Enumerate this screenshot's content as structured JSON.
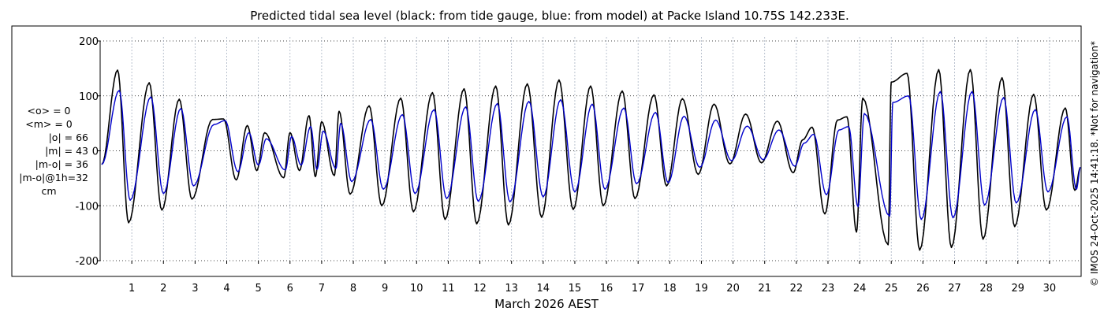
{
  "chart_data": {
    "type": "line",
    "title": "Predicted tidal sea level (black: from tide gauge, blue: from model) at Packe Island 10.75S 142.233E.",
    "xlabel": "March 2026 AEST",
    "ylabel": "",
    "unit": "cm",
    "xlim": [
      0,
      31
    ],
    "ylim": [
      -200,
      200
    ],
    "yticks": [
      -200,
      -100,
      0,
      100,
      200
    ],
    "xticks": [
      "1",
      "2",
      "3",
      "4",
      "5",
      "6",
      "7",
      "8",
      "9",
      "10",
      "11",
      "12",
      "13",
      "14",
      "15",
      "16",
      "17",
      "18",
      "19",
      "20",
      "21",
      "22",
      "23",
      "24",
      "25",
      "26",
      "27",
      "28",
      "29",
      "30"
    ],
    "grid": true,
    "series": [
      {
        "name": "tide gauge",
        "color": "#000000",
        "highs": [
          [
            0.55,
            147
          ],
          [
            1.55,
            124
          ],
          [
            2.5,
            94
          ],
          [
            3.55,
            57
          ],
          [
            3.9,
            58
          ],
          [
            4.65,
            46
          ],
          [
            5.2,
            33
          ],
          [
            6.0,
            33
          ],
          [
            6.6,
            64
          ],
          [
            7.0,
            53
          ],
          [
            7.55,
            72
          ],
          [
            8.5,
            82
          ],
          [
            9.5,
            96
          ],
          [
            10.5,
            106
          ],
          [
            11.5,
            113
          ],
          [
            12.5,
            118
          ],
          [
            13.5,
            122
          ],
          [
            14.5,
            129
          ],
          [
            15.5,
            118
          ],
          [
            16.5,
            109
          ],
          [
            17.5,
            102
          ],
          [
            18.4,
            95
          ],
          [
            19.4,
            85
          ],
          [
            20.4,
            67
          ],
          [
            21.4,
            54
          ],
          [
            22.2,
            20
          ],
          [
            22.5,
            43
          ],
          [
            23.3,
            56
          ],
          [
            23.6,
            62
          ],
          [
            24.1,
            96
          ],
          [
            25.0,
            125
          ],
          [
            25.5,
            141
          ],
          [
            26.5,
            148
          ],
          [
            27.5,
            148
          ],
          [
            28.5,
            133
          ],
          [
            29.5,
            103
          ],
          [
            30.5,
            78
          ]
        ],
        "lows": [
          [
            0.9,
            -131
          ],
          [
            1.95,
            -108
          ],
          [
            2.9,
            -88
          ],
          [
            4.3,
            -53
          ],
          [
            4.95,
            -36
          ],
          [
            5.8,
            -49
          ],
          [
            6.3,
            -36
          ],
          [
            6.8,
            -47
          ],
          [
            7.4,
            -45
          ],
          [
            7.9,
            -79
          ],
          [
            8.9,
            -100
          ],
          [
            9.9,
            -111
          ],
          [
            10.9,
            -125
          ],
          [
            11.9,
            -133
          ],
          [
            12.9,
            -135
          ],
          [
            13.95,
            -121
          ],
          [
            14.95,
            -107
          ],
          [
            15.9,
            -100
          ],
          [
            16.9,
            -87
          ],
          [
            17.9,
            -64
          ],
          [
            18.9,
            -43
          ],
          [
            19.9,
            -24
          ],
          [
            20.9,
            -22
          ],
          [
            21.9,
            -40
          ],
          [
            22.9,
            -115
          ],
          [
            23.9,
            -148
          ],
          [
            24.9,
            -171
          ],
          [
            25.9,
            -181
          ],
          [
            26.9,
            -176
          ],
          [
            27.9,
            -161
          ],
          [
            28.9,
            -138
          ],
          [
            29.9,
            -108
          ],
          [
            30.8,
            -72
          ]
        ],
        "stats": [
          "<o> = 0",
          "|o| = 66"
        ]
      },
      {
        "name": "model",
        "color": "#0000cc",
        "highs": [
          [
            0.6,
            110
          ],
          [
            1.6,
            98
          ],
          [
            2.55,
            77
          ],
          [
            3.6,
            48
          ],
          [
            3.95,
            55
          ],
          [
            4.7,
            33
          ],
          [
            5.25,
            22
          ],
          [
            6.05,
            26
          ],
          [
            6.65,
            44
          ],
          [
            7.05,
            36
          ],
          [
            7.6,
            50
          ],
          [
            8.55,
            57
          ],
          [
            9.55,
            66
          ],
          [
            10.55,
            75
          ],
          [
            11.55,
            80
          ],
          [
            12.55,
            86
          ],
          [
            13.55,
            90
          ],
          [
            14.55,
            93
          ],
          [
            15.55,
            85
          ],
          [
            16.55,
            78
          ],
          [
            17.55,
            70
          ],
          [
            18.45,
            63
          ],
          [
            19.45,
            56
          ],
          [
            20.45,
            45
          ],
          [
            21.45,
            38
          ],
          [
            22.25,
            14
          ],
          [
            22.55,
            30
          ],
          [
            23.35,
            38
          ],
          [
            23.65,
            44
          ],
          [
            24.15,
            68
          ],
          [
            25.05,
            88
          ],
          [
            25.55,
            100
          ],
          [
            26.55,
            108
          ],
          [
            27.55,
            108
          ],
          [
            28.55,
            97
          ],
          [
            29.55,
            75
          ],
          [
            30.55,
            62
          ]
        ],
        "lows": [
          [
            0.95,
            -90
          ],
          [
            2.0,
            -78
          ],
          [
            2.95,
            -64
          ],
          [
            4.35,
            -38
          ],
          [
            5.0,
            -26
          ],
          [
            5.85,
            -35
          ],
          [
            6.35,
            -26
          ],
          [
            6.85,
            -34
          ],
          [
            7.45,
            -32
          ],
          [
            7.95,
            -56
          ],
          [
            8.95,
            -70
          ],
          [
            9.95,
            -78
          ],
          [
            10.95,
            -87
          ],
          [
            11.95,
            -92
          ],
          [
            12.95,
            -93
          ],
          [
            14.0,
            -84
          ],
          [
            15.0,
            -75
          ],
          [
            15.95,
            -70
          ],
          [
            16.95,
            -60
          ],
          [
            17.95,
            -58
          ],
          [
            18.95,
            -30
          ],
          [
            19.95,
            -18
          ],
          [
            20.95,
            -16
          ],
          [
            21.95,
            -28
          ],
          [
            22.95,
            -80
          ],
          [
            23.95,
            -102
          ],
          [
            24.95,
            -119
          ],
          [
            25.95,
            -125
          ],
          [
            26.95,
            -122
          ],
          [
            27.95,
            -99
          ],
          [
            28.95,
            -95
          ],
          [
            29.95,
            -75
          ],
          [
            30.85,
            -70
          ]
        ],
        "stats": [
          "<m> = 0",
          "|m| = 43"
        ]
      }
    ],
    "stats_text": [
      "<o> = 0",
      "<m> = 0",
      "|o| = 66",
      "|m| = 43",
      "|m-o| = 36",
      "|m-o|@1h=32",
      "cm"
    ],
    "copyright": "© IMOS 24-Oct-2025 14:41:18. *Not for navigation*"
  }
}
